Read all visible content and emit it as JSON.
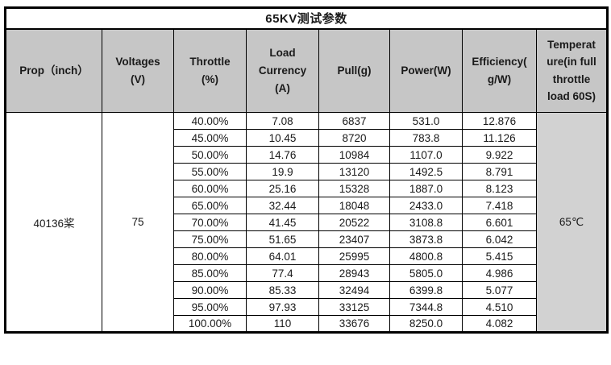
{
  "title": "65KV测试参数",
  "table": {
    "headers": [
      "Prop（inch）",
      "Voltages\n(V)",
      "Throttle\n(%)",
      "Load\nCurrency\n(A)",
      "Pull(g)",
      "Power(W)",
      "Efficiency(\ng/W)",
      "Temperat\nure(in full\nthrottle\nload 60S)"
    ],
    "prop_value": "40136桨",
    "voltage_value": "75",
    "temperature_value": "65℃",
    "rows": [
      [
        "40.00%",
        "7.08",
        "6837",
        "531.0",
        "12.876"
      ],
      [
        "45.00%",
        "10.45",
        "8720",
        "783.8",
        "11.126"
      ],
      [
        "50.00%",
        "14.76",
        "10984",
        "1107.0",
        "9.922"
      ],
      [
        "55.00%",
        "19.9",
        "13120",
        "1492.5",
        "8.791"
      ],
      [
        "60.00%",
        "25.16",
        "15328",
        "1887.0",
        "8.123"
      ],
      [
        "65.00%",
        "32.44",
        "18048",
        "2433.0",
        "7.418"
      ],
      [
        "70.00%",
        "41.45",
        "20522",
        "3108.8",
        "6.601"
      ],
      [
        "75.00%",
        "51.65",
        "23407",
        "3873.8",
        "6.042"
      ],
      [
        "80.00%",
        "64.01",
        "25995",
        "4800.8",
        "5.415"
      ],
      [
        "85.00%",
        "77.4",
        "28943",
        "5805.0",
        "4.986"
      ],
      [
        "90.00%",
        "85.33",
        "32494",
        "6399.8",
        "5.077"
      ],
      [
        "95.00%",
        "97.93",
        "33125",
        "7344.8",
        "4.510"
      ],
      [
        "100.00%",
        "110",
        "33676",
        "8250.0",
        "4.082"
      ]
    ],
    "colors": {
      "header_bg": "#c6c6c6",
      "temp_cell_bg": "#d2d2d2",
      "border": "#000000"
    }
  }
}
